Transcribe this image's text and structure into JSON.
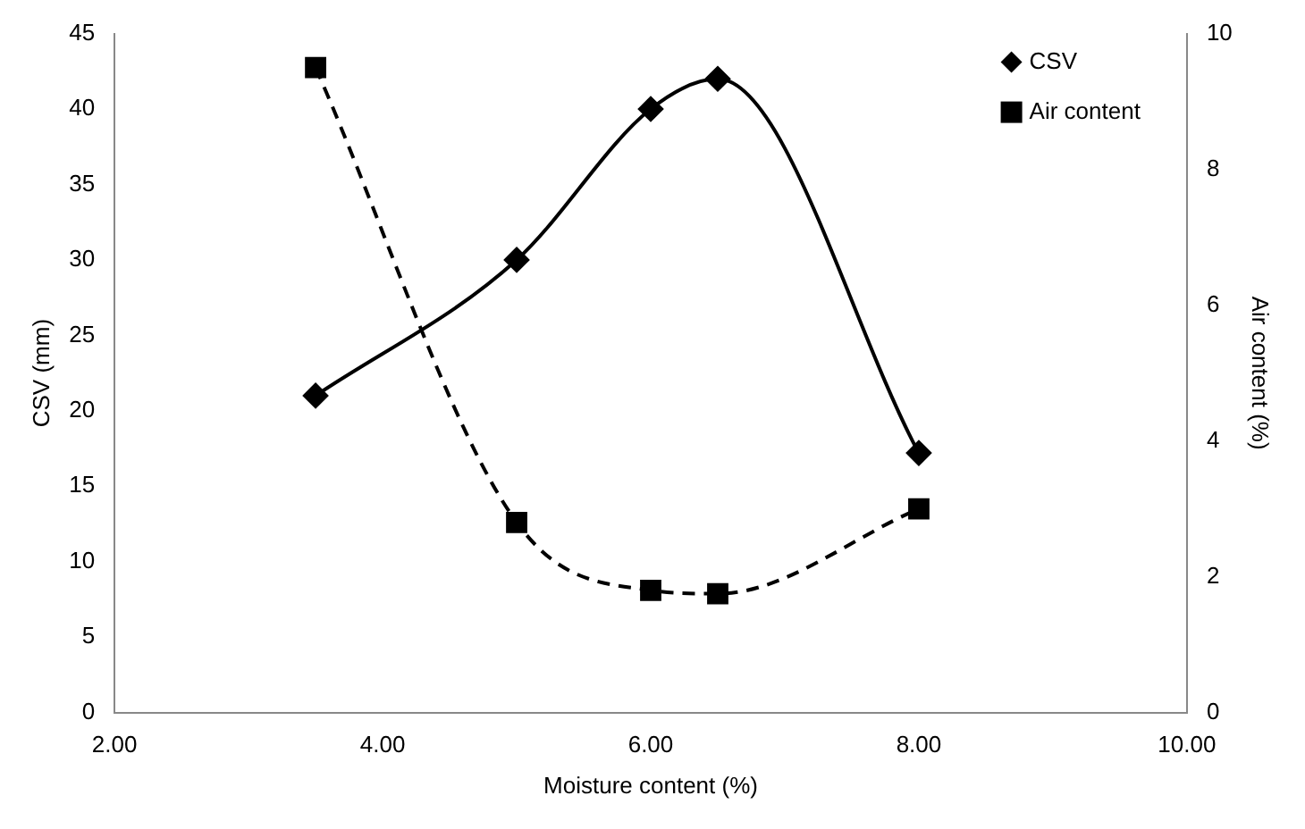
{
  "chart_data": {
    "type": "line",
    "xlabel": "Moisture content (%)",
    "ylabel": "CSV (mm)",
    "y2label": "Air content (%)",
    "xlim": [
      2,
      10
    ],
    "xticks": [
      {
        "value": 2,
        "label": "2.00"
      },
      {
        "value": 4,
        "label": "4.00"
      },
      {
        "value": 6,
        "label": "6.00"
      },
      {
        "value": 8,
        "label": "8.00"
      },
      {
        "value": 10,
        "label": "10.00"
      }
    ],
    "ylim": [
      0,
      45
    ],
    "yticks": [
      0,
      5,
      10,
      15,
      20,
      25,
      30,
      35,
      40,
      45
    ],
    "y2lim": [
      0,
      10
    ],
    "y2ticks": [
      0,
      2,
      4,
      6,
      8,
      10
    ],
    "grid": false,
    "legend": "top right",
    "series": [
      {
        "name": "CSV",
        "color": "#000000",
        "marker": "diamond",
        "line_style": "solid",
        "x": [
          3.5,
          5,
          6,
          6.5,
          8
        ],
        "values": [
          21,
          30,
          40,
          42,
          17.2
        ]
      },
      {
        "name": "Air content",
        "color": "#000000",
        "marker": "square",
        "line_style": "dashed",
        "axis": "y2",
        "x": [
          3.5,
          5,
          6,
          6.5,
          8
        ],
        "values": [
          9.5,
          2.8,
          1.8,
          1.75,
          3.0
        ]
      }
    ]
  }
}
